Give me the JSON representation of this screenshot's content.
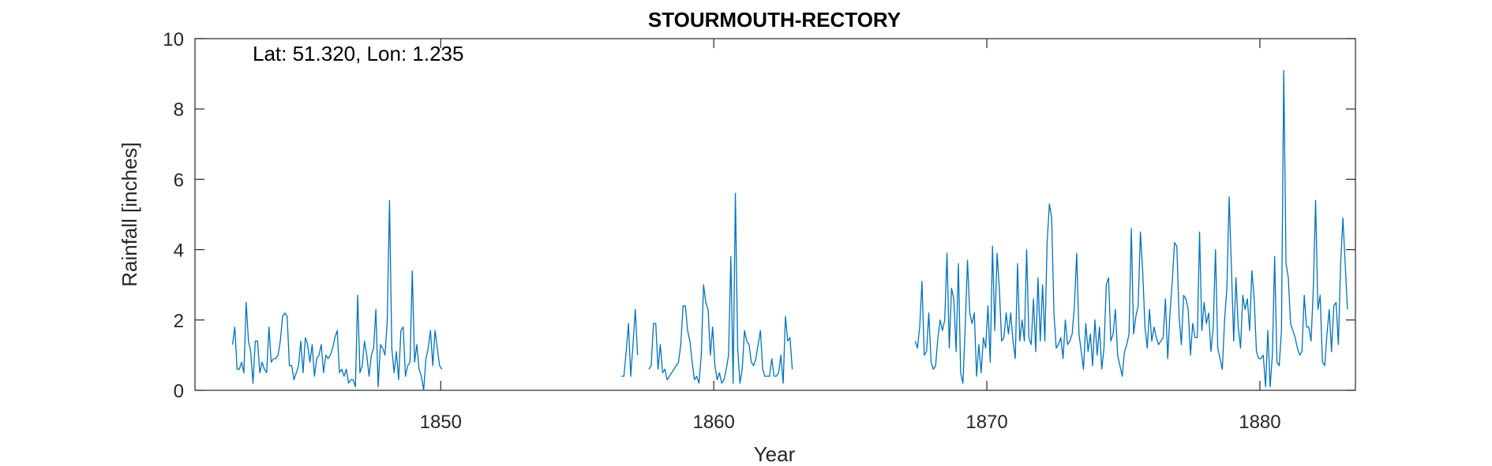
{
  "chart_data": {
    "type": "line",
    "title": "STOURMOUTH-RECTORY",
    "annotation": "Lat: 51.320, Lon: 1.235",
    "xlabel": "Year",
    "ylabel": "Rainfall [inches]",
    "xlim": [
      1841.0,
      1883.5
    ],
    "ylim": [
      0,
      10
    ],
    "xticks": [
      "1850",
      "1860",
      "1870",
      "1880"
    ],
    "yticks": [
      "0",
      "2",
      "4",
      "6",
      "8",
      "10"
    ],
    "grid": false,
    "color": "#0072BD",
    "series": [
      {
        "name": "",
        "segments": [
          {
            "start_year": 1842.375,
            "values": [
              1.3,
              1.8,
              0.6,
              0.6,
              0.8,
              0.5,
              2.5,
              1.4,
              1.1,
              0.2,
              1.4,
              1.4,
              0.5,
              0.8,
              0.6,
              0.5,
              1.8,
              0.8,
              0.9,
              0.9,
              1.0,
              1.4,
              2.1,
              2.2,
              2.1,
              0.7,
              0.7,
              0.3,
              0.5,
              0.7,
              1.4,
              0.5,
              1.5,
              1.3,
              0.8,
              1.3,
              0.4,
              0.9,
              1.0,
              1.3,
              0.5,
              1.0,
              0.9,
              1.0,
              1.2,
              1.5,
              1.7,
              0.5,
              0.6,
              0.4,
              0.6,
              0.2,
              0.3,
              0.3,
              0.1,
              2.7,
              0.5,
              0.7,
              1.4,
              1.0,
              0.4,
              1.0,
              1.2,
              2.3,
              0.1,
              1.3,
              1.2,
              1.0,
              2.0,
              5.4,
              1.2,
              0.5,
              1.1,
              0.3,
              1.7,
              1.8,
              0.4,
              0.7,
              0.8,
              3.4,
              0.8,
              1.3,
              0.6,
              0.4,
              0.0,
              0.9,
              1.2,
              1.7,
              0.7,
              1.7,
              1.2,
              0.7,
              0.6
            ]
          },
          {
            "start_year": 1856.625,
            "values": [
              0.4,
              0.4,
              1.1,
              1.9,
              0.4,
              1.3,
              2.3,
              1.0
            ]
          },
          {
            "start_year": 1857.625,
            "values": [
              0.6,
              0.7,
              1.9,
              1.9,
              0.6,
              1.3,
              0.5,
              0.6,
              0.3,
              0.4,
              0.5,
              0.6,
              0.7,
              0.8,
              1.3,
              2.4,
              2.4,
              1.7,
              1.4,
              0.8,
              0.3,
              0.4,
              0.2,
              1.0,
              3.0,
              2.5,
              2.3,
              1.0,
              1.8,
              0.7,
              0.3,
              0.5,
              0.2,
              0.3,
              0.6,
              1.0,
              3.8,
              0.2,
              5.6,
              1.2,
              0.2,
              0.6,
              1.7,
              1.4,
              1.3,
              0.8,
              0.7,
              0.9,
              1.3,
              1.7,
              0.6,
              0.4,
              0.4,
              0.4,
              0.9,
              0.4,
              0.4,
              0.5,
              1.0,
              0.2,
              2.1,
              1.4,
              1.5,
              0.6
            ]
          },
          {
            "start_year": 1867.375,
            "values": [
              1.4,
              1.2,
              1.8,
              3.1,
              1.0,
              1.1,
              2.2,
              0.8,
              0.6,
              0.7,
              1.5,
              2.0,
              1.7,
              2.0,
              3.9,
              1.2,
              2.9,
              2.6,
              1.1,
              3.6,
              0.5,
              0.2,
              1.8,
              3.7,
              2.2,
              1.9,
              2.2,
              0.4,
              1.3,
              0.5,
              1.5,
              1.2,
              2.4,
              0.8,
              4.1,
              1.7,
              3.9,
              2.9,
              1.4,
              1.5,
              2.2,
              1.6,
              2.2,
              1.4,
              0.9,
              3.6,
              1.4,
              2.0,
              1.4,
              4.0,
              1.5,
              1.3,
              2.6,
              1.1,
              3.2,
              1.4,
              3.0,
              1.4,
              4.2,
              5.3,
              4.9,
              2.2,
              1.2,
              1.3,
              1.5,
              0.9,
              2.0,
              1.3,
              1.4,
              1.6,
              2.4,
              3.9,
              1.6,
              1.1,
              0.6,
              1.9,
              1.1,
              1.6,
              0.7,
              2.0,
              1.0,
              1.8,
              0.6,
              1.2,
              3.0,
              3.2,
              1.4,
              1.6,
              2.3,
              1.0,
              0.7,
              0.4,
              1.1,
              1.3,
              1.6,
              4.6,
              1.6,
              2.1,
              2.4,
              4.5,
              3.4,
              1.8,
              1.2,
              2.3,
              1.4,
              1.8,
              1.5,
              1.3,
              1.4,
              1.5,
              2.6,
              0.9,
              2.2,
              3.1,
              4.2,
              4.1,
              2.1,
              1.3,
              2.7,
              2.6,
              2.3,
              1.0,
              1.9,
              1.5,
              1.5,
              4.5,
              1.7,
              2.5,
              1.9,
              2.2,
              1.1,
              1.8,
              4.0,
              1.2,
              0.9,
              0.6,
              2.0,
              2.9,
              5.5,
              3.5,
              1.4,
              3.2,
              1.8,
              1.2,
              2.7,
              2.3,
              2.6,
              1.7,
              3.4,
              2.6,
              1.1,
              0.9,
              0.9,
              1.0,
              0.1,
              1.7,
              0.1,
              1.0,
              3.8,
              0.8,
              0.7,
              1.7,
              9.1,
              3.6,
              3.2,
              1.9,
              1.7,
              1.5,
              1.2,
              1.0,
              1.1,
              2.7,
              1.8,
              1.8,
              1.4,
              2.9,
              5.4,
              2.3,
              2.7,
              0.8,
              0.7,
              1.6,
              2.3,
              1.1,
              2.4,
              2.5,
              1.3,
              3.6,
              4.9,
              3.6,
              2.3
            ]
          }
        ]
      }
    ]
  }
}
